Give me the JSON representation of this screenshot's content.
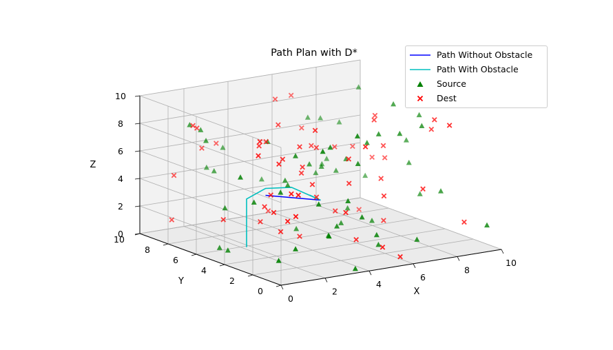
{
  "chart_data": {
    "type": "scatter",
    "projection": "3d",
    "title": "Path Plan with D*",
    "xlabel": "X",
    "ylabel": "Y",
    "zlabel": "Z",
    "xlim": [
      0,
      10
    ],
    "ylim": [
      0,
      10
    ],
    "zlim": [
      0,
      10
    ],
    "xticks": [
      "0",
      "2",
      "4",
      "6",
      "8",
      "10"
    ],
    "yticks": [
      "0",
      "2",
      "4",
      "6",
      "8",
      "10"
    ],
    "zticks": [
      "0",
      "2",
      "4",
      "6",
      "8",
      "10"
    ],
    "grid": true,
    "legend_position": "top-right",
    "series": [
      {
        "name": "Path Without Obstacle",
        "kind": "line",
        "color": "#0000ff",
        "points": [
          [
            2.5,
            5.0,
            4.0
          ],
          [
            5.0,
            5.0,
            3.0
          ]
        ]
      },
      {
        "name": "Path With Obstacle",
        "kind": "line",
        "color": "#00bfbf",
        "points": [
          [
            1.0,
            4.0,
            1.0
          ],
          [
            1.0,
            4.0,
            4.5
          ],
          [
            2.5,
            5.0,
            4.5
          ],
          [
            4.0,
            5.5,
            4.0
          ],
          [
            5.0,
            5.0,
            3.0
          ],
          [
            4.5,
            5.0,
            3.5
          ]
        ]
      },
      {
        "name": "Source",
        "kind": "scatter",
        "marker": "triangle",
        "color": "#008000",
        "points": [
          [
            7.3,
            9.5,
            6.7
          ],
          [
            6.8,
            5.9,
            1.6
          ],
          [
            8.9,
            8.4,
            8.9
          ],
          [
            6.6,
            5.7,
            5.3
          ],
          [
            1.4,
            7.5,
            7.3
          ],
          [
            2.9,
            9.8,
            4.1
          ],
          [
            4.0,
            1.5,
            4.5
          ],
          [
            1.3,
            8.5,
            8.1
          ],
          [
            2.9,
            3.5,
            7.3
          ],
          [
            6.4,
            3.9,
            7.2
          ],
          [
            4.2,
            7.5,
            6.5
          ],
          [
            2.5,
            0.5,
            2.7
          ],
          [
            1.3,
            1.0,
            1.9
          ],
          [
            5.0,
            5.8,
            5.3
          ],
          [
            9.6,
            5.2,
            7.9
          ],
          [
            7.5,
            3.3,
            7.8
          ],
          [
            3.5,
            2.1,
            1.9
          ],
          [
            4.3,
            1.3,
            9.2
          ],
          [
            8.5,
            3.3,
            8.1
          ],
          [
            8.6,
            9.3,
            6.1
          ],
          [
            3.5,
            0.2,
            0.2
          ],
          [
            3.9,
            5.8,
            4.4
          ],
          [
            1.4,
            4.1,
            4.1
          ],
          [
            3.7,
            9.9,
            5.3
          ],
          [
            5.4,
            9.8,
            2.6
          ],
          [
            9.6,
            0.4,
            1.7
          ],
          [
            7.3,
            7.5,
            3.6
          ],
          [
            0.6,
            4.7,
            0.6
          ],
          [
            3.9,
            2.6,
            8.0
          ],
          [
            2.8,
            1.7,
            4.5
          ],
          [
            6.0,
            6.5,
            4.6
          ],
          [
            0.4,
            3.5,
            6.4
          ],
          [
            5.8,
            4.8,
            1.2
          ],
          [
            7.9,
            9.1,
            3.7
          ],
          [
            7.2,
            4.8,
            1.0
          ],
          [
            1.3,
            6.0,
            3.0
          ],
          [
            6.7,
            8.0,
            3.4
          ],
          [
            7.3,
            8.5,
            3.7
          ],
          [
            4.6,
            6.1,
            0.6
          ],
          [
            2.6,
            1.1,
            8.6
          ],
          [
            1.9,
            3.0,
            5.1
          ],
          [
            1.8,
            8.5,
            7.6
          ],
          [
            9.2,
            8.4,
            2.4
          ],
          [
            9.2,
            5.3,
            4.5
          ],
          [
            5.3,
            1.5,
            1.7
          ],
          [
            5.7,
            2.0,
            0.7
          ],
          [
            2.6,
            8.8,
            4.3
          ],
          [
            0.6,
            1.1,
            1.2
          ],
          [
            0.8,
            5.6,
            0.4
          ],
          [
            7.0,
            1.3,
            1.0
          ],
          [
            6.8,
            3.7,
            7.8
          ],
          [
            8.3,
            5.0,
            9.1
          ],
          [
            4.2,
            2.6,
            2.2
          ],
          [
            4.7,
            1.6,
            3.1
          ],
          [
            9.7,
            5.3,
            2.1
          ],
          [
            9.4,
            5.8,
            5.9
          ],
          [
            9.3,
            3.2,
            3.2
          ],
          [
            3.7,
            5.3,
            4.3
          ],
          [
            8.0,
            9.7,
            6.4
          ],
          [
            4.9,
            2.2,
            6.7
          ]
        ]
      },
      {
        "name": "Dest",
        "kind": "scatter",
        "marker": "x",
        "color": "#ff0000",
        "points": [
          [
            7.6,
            4.6,
            1.0
          ],
          [
            6.7,
            9.0,
            6.3
          ],
          [
            0.8,
            0.2,
            4.7
          ],
          [
            2.2,
            4.9,
            2.2
          ],
          [
            7.4,
            1.5,
            4.5
          ],
          [
            1.4,
            2.7,
            3.9
          ],
          [
            4.8,
            8.4,
            1.0
          ],
          [
            1.3,
            1.3,
            5.8
          ],
          [
            5.6,
            4.9,
            2.1
          ],
          [
            2.7,
            4.1,
            6.9
          ],
          [
            3.1,
            5.9,
            7.4
          ],
          [
            3.4,
            9.9,
            5.7
          ],
          [
            1.0,
            9.3,
            1.0
          ],
          [
            7.3,
            7.6,
            5.3
          ],
          [
            9.4,
            1.7,
            1.5
          ],
          [
            5.0,
            5.3,
            6.7
          ],
          [
            1.1,
            9.3,
            4.2
          ],
          [
            8.6,
            7.9,
            0.3
          ],
          [
            4.5,
            1.7,
            1.5
          ],
          [
            5.5,
            9.0,
            8.7
          ],
          [
            3.6,
            4.1,
            6.1
          ],
          [
            2.1,
            3.3,
            2.1
          ],
          [
            8.1,
            5.4,
            6.0
          ],
          [
            5.6,
            6.6,
            6.2
          ],
          [
            2.2,
            4.6,
            3.4
          ],
          [
            2.4,
            5.3,
            7.5
          ],
          [
            5.6,
            0.3,
            0.5
          ],
          [
            0.7,
            2.7,
            8.2
          ],
          [
            2.1,
            4.0,
            4.5
          ],
          [
            5.2,
            3.3,
            4.8
          ],
          [
            1.3,
            0.8,
            5.9
          ],
          [
            4.0,
            4.8,
            5.3
          ],
          [
            0.9,
            2.9,
            9.1
          ],
          [
            4.8,
            2.7,
            6.9
          ],
          [
            3.6,
            4.3,
            7.5
          ],
          [
            3.6,
            3.2,
            9.1
          ],
          [
            8.5,
            8.2,
            4.8
          ],
          [
            1.5,
            8.3,
            7.9
          ],
          [
            4.6,
            1.2,
            8.4
          ],
          [
            7.3,
            4.8,
            8.3
          ],
          [
            4.8,
            0.3,
            1.4
          ],
          [
            7.9,
            0.4,
            9.4
          ],
          [
            1.7,
            2.8,
            7.3
          ],
          [
            6.8,
            9.9,
            8.3
          ],
          [
            9.0,
            7.6,
            4.1
          ],
          [
            3.6,
            4.3,
            1.0
          ],
          [
            3.6,
            3.4,
            5.1
          ],
          [
            1.0,
            7.8,
            8.4
          ],
          [
            7.1,
            4.0,
            4.4
          ],
          [
            4.3,
            4.2,
            3.7
          ],
          [
            3.9,
            1.5,
            3.7
          ],
          [
            8.5,
            2.4,
            8.9
          ],
          [
            1.2,
            1.4,
            3.8
          ],
          [
            8.3,
            6.3,
            7.8
          ],
          [
            6.4,
            2.7,
            3.8
          ],
          [
            2.3,
            9.2,
            5.9
          ],
          [
            4.1,
            6.6,
            8.1
          ],
          [
            9.0,
            3.4,
            7.7
          ],
          [
            1.1,
            5.8,
            2.3
          ],
          [
            9.0,
            6.7,
            4.4
          ]
        ]
      }
    ]
  }
}
